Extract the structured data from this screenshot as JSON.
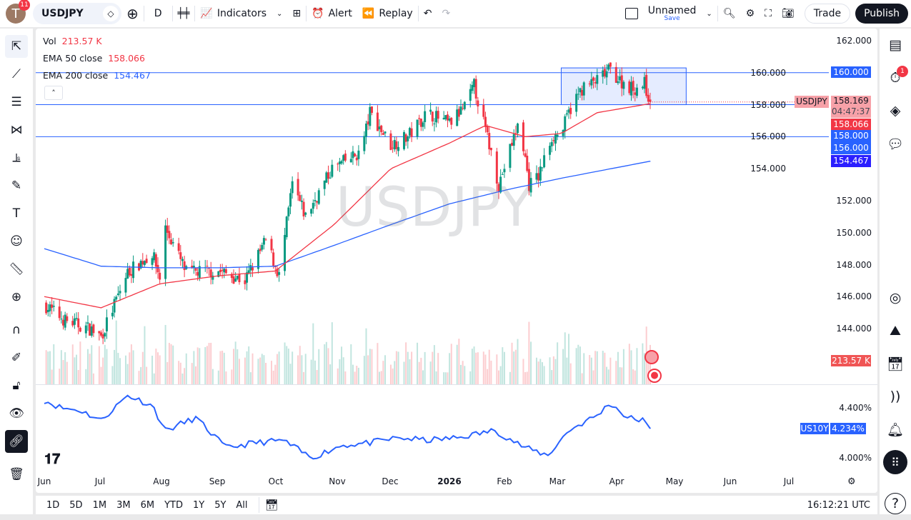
{
  "header": {
    "notifications": "11",
    "avatar_letter": "T",
    "symbol": "USDJPY",
    "interval": "D",
    "indicators": "Indicators",
    "alert": "Alert",
    "replay": "Replay",
    "layout_name": "Unnamed",
    "save": "Save",
    "trade": "Trade",
    "publish": "Publish"
  },
  "legend": {
    "vol_label": "Vol",
    "vol_value": "213.57 K",
    "ema50_label": "EMA 50 close",
    "ema50_value": "158.066",
    "ema200_label": "EMA 200 close",
    "ema200_value": "154.467"
  },
  "watermark": "USDJPY",
  "price_axis": {
    "ticks": [
      "162.000",
      "160.000",
      "158.000",
      "156.000",
      "154.000",
      "152.000",
      "150.000",
      "148.000",
      "146.000",
      "144.000"
    ],
    "tags": {
      "level_160": "160.000",
      "symbol": "USDJPY",
      "last": "158.169",
      "countdown": "04:47:37",
      "ema50": "158.066",
      "level_158": "158.000",
      "level_156": "156.000",
      "ema200": "154.467",
      "volume": "213.57 K"
    }
  },
  "indicator_pane": {
    "symbol": "US10Y",
    "value": "4.234%",
    "ticks": [
      "4.400%",
      "4.000%"
    ]
  },
  "time_axis": [
    "Jun",
    "Jul",
    "Aug",
    "Sep",
    "Oct",
    "Nov",
    "Dec",
    "2026",
    "Feb",
    "Mar",
    "Apr",
    "May",
    "Jun",
    "Jul"
  ],
  "bottom_bar": {
    "ranges": [
      "1D",
      "5D",
      "1M",
      "3M",
      "6M",
      "YTD",
      "1Y",
      "5Y",
      "All"
    ],
    "clock": "16:12:21 UTC"
  },
  "right_panel": {
    "alerts_badge": "1"
  },
  "colors": {
    "up": "#089981",
    "down": "#f23645",
    "ema50": "#f23645",
    "ema200": "#2962ff",
    "level": "#2962ff",
    "yield": "#2962ff",
    "box": "#2962ff"
  },
  "chart_data": {
    "type": "candlestick",
    "price_levels": [
      160,
      158,
      156
    ],
    "box": {
      "from": "2026-03-01",
      "to": "2026-05-06",
      "top": 160.3,
      "bottom": 158.0
    },
    "close_path": [
      [
        "2025-06-01",
        145.5
      ],
      [
        "2025-06-12",
        144.5
      ],
      [
        "2025-06-25",
        144.0
      ],
      [
        "2025-07-01",
        143.5
      ],
      [
        "2025-07-15",
        147.5
      ],
      [
        "2025-07-28",
        148.7
      ],
      [
        "2025-08-01",
        147.2
      ],
      [
        "2025-08-04",
        150.3
      ],
      [
        "2025-08-15",
        147.5
      ],
      [
        "2025-09-01",
        147.6
      ],
      [
        "2025-09-15",
        147.0
      ],
      [
        "2025-09-26",
        149.5
      ],
      [
        "2025-10-03",
        147.3
      ],
      [
        "2025-10-10",
        153.0
      ],
      [
        "2025-10-17",
        151.0
      ],
      [
        "2025-10-31",
        154.0
      ],
      [
        "2025-11-15",
        155.0
      ],
      [
        "2025-11-20",
        157.5
      ],
      [
        "2025-12-01",
        155.5
      ],
      [
        "2025-12-10",
        156.0
      ],
      [
        "2025-12-20",
        157.5
      ],
      [
        "2026-01-01",
        156.8
      ],
      [
        "2026-01-10",
        158.0
      ],
      [
        "2026-01-14",
        159.2
      ],
      [
        "2026-01-23",
        155.0
      ],
      [
        "2026-01-27",
        153.0
      ],
      [
        "2026-02-02",
        155.2
      ],
      [
        "2026-02-07",
        157.0
      ],
      [
        "2026-02-12",
        153.0
      ],
      [
        "2026-02-17",
        153.5
      ],
      [
        "2026-02-24",
        156.0
      ],
      [
        "2026-03-01",
        156.2
      ],
      [
        "2026-03-06",
        157.8
      ],
      [
        "2026-03-12",
        159.0
      ],
      [
        "2026-03-20",
        159.5
      ],
      [
        "2026-03-27",
        160.2
      ],
      [
        "2026-04-01",
        159.5
      ],
      [
        "2026-04-08",
        159.0
      ],
      [
        "2026-04-14",
        159.3
      ],
      [
        "2026-04-17",
        158.169
      ]
    ],
    "ema50": [
      [
        "2025-06-01",
        146.0
      ],
      [
        "2025-07-01",
        145.3
      ],
      [
        "2025-08-01",
        146.8
      ],
      [
        "2025-09-01",
        147.3
      ],
      [
        "2025-10-01",
        147.6
      ],
      [
        "2025-11-01",
        150.5
      ],
      [
        "2025-12-01",
        154.0
      ],
      [
        "2026-01-01",
        155.6
      ],
      [
        "2026-01-20",
        156.7
      ],
      [
        "2026-02-10",
        156.0
      ],
      [
        "2026-03-01",
        156.2
      ],
      [
        "2026-03-20",
        157.5
      ],
      [
        "2026-04-17",
        158.066
      ]
    ],
    "ema200": [
      [
        "2025-06-01",
        149.0
      ],
      [
        "2025-07-01",
        147.9
      ],
      [
        "2025-08-01",
        147.8
      ],
      [
        "2025-09-01",
        147.8
      ],
      [
        "2025-10-01",
        147.9
      ],
      [
        "2025-11-01",
        149.2
      ],
      [
        "2025-12-01",
        150.5
      ],
      [
        "2026-01-01",
        151.8
      ],
      [
        "2026-02-01",
        152.7
      ],
      [
        "2026-03-01",
        153.4
      ],
      [
        "2026-04-17",
        154.467
      ]
    ],
    "us10y": [
      [
        "2025-06-01",
        4.46
      ],
      [
        "2025-06-10",
        4.4
      ],
      [
        "2025-06-20",
        4.38
      ],
      [
        "2025-07-01",
        4.3
      ],
      [
        "2025-07-15",
        4.5
      ],
      [
        "2025-07-28",
        4.42
      ],
      [
        "2025-08-04",
        4.22
      ],
      [
        "2025-08-20",
        4.32
      ],
      [
        "2025-09-05",
        4.08
      ],
      [
        "2025-09-20",
        4.12
      ],
      [
        "2025-10-05",
        4.14
      ],
      [
        "2025-10-20",
        4.0
      ],
      [
        "2025-11-05",
        4.1
      ],
      [
        "2025-11-20",
        4.12
      ],
      [
        "2025-12-05",
        4.16
      ],
      [
        "2025-12-20",
        4.14
      ],
      [
        "2026-01-05",
        4.16
      ],
      [
        "2026-01-25",
        4.22
      ],
      [
        "2026-02-10",
        4.08
      ],
      [
        "2026-02-22",
        4.02
      ],
      [
        "2026-03-05",
        4.22
      ],
      [
        "2026-03-20",
        4.34
      ],
      [
        "2026-03-27",
        4.44
      ],
      [
        "2026-04-05",
        4.32
      ],
      [
        "2026-04-14",
        4.3
      ],
      [
        "2026-04-17",
        4.234
      ]
    ]
  }
}
